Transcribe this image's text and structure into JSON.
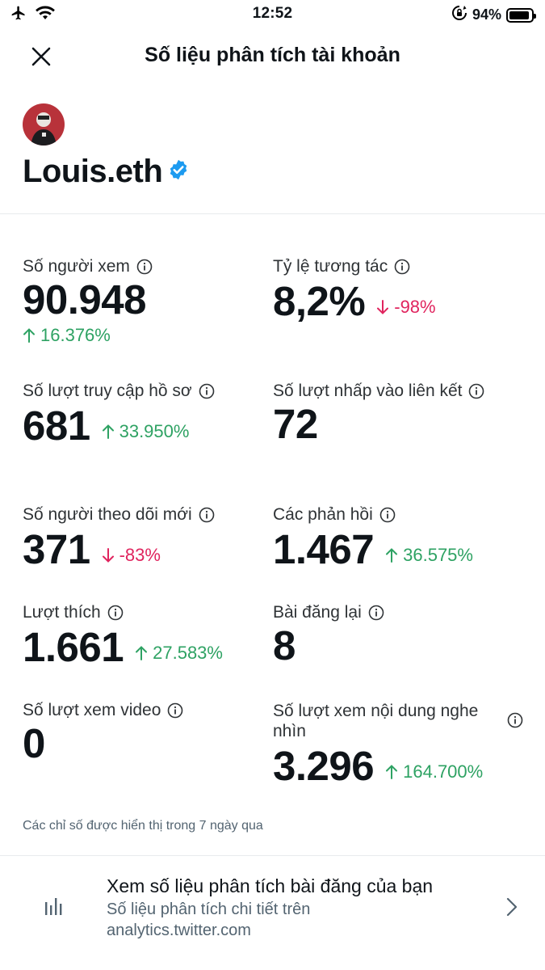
{
  "status_bar": {
    "time": "12:52",
    "battery": "94%",
    "battery_level": 0.94
  },
  "header": {
    "title": "Số liệu phân tích tài khoản",
    "close_icon": "close-icon"
  },
  "profile": {
    "name": "Louis.eth",
    "verified": true
  },
  "metrics": {
    "views": {
      "label": "Số người xem",
      "value": "90.948",
      "change": "16.376%",
      "direction": "up"
    },
    "engagement": {
      "label": "Tỷ lệ tương tác",
      "value": "8,2%",
      "change": "-98%",
      "direction": "down"
    },
    "profile_visits": {
      "label": "Số lượt truy cập hồ sơ",
      "value": "681",
      "change": "33.950%",
      "direction": "up"
    },
    "link_clicks": {
      "label": "Số lượt nhấp vào liên kết",
      "value": "72"
    },
    "new_followers": {
      "label": "Số người theo dõi mới",
      "value": "371",
      "change": "-83%",
      "direction": "down"
    },
    "replies": {
      "label": "Các phản hồi",
      "value": "1.467",
      "change": "36.575%",
      "direction": "up"
    },
    "likes": {
      "label": "Lượt thích",
      "value": "1.661",
      "change": "27.583%",
      "direction": "up"
    },
    "reposts": {
      "label": "Bài đăng lại",
      "value": "8"
    },
    "video_views": {
      "label": "Số lượt xem video",
      "value": "0"
    },
    "media_views": {
      "label": "Số lượt xem nội dung nghe nhìn",
      "value": "3.296",
      "change": "164.700%",
      "direction": "up"
    }
  },
  "footnote": "Các chỉ số được hiển thị trong 7 ngày qua",
  "analytics_link": {
    "title": "Xem số liệu phân tích bài đăng của bạn",
    "subtitle": "Số liệu phân tích chi tiết trên analytics.twitter.com"
  },
  "colors": {
    "positive": "#2ea263",
    "negative": "#e0245e",
    "verified": "#1d9bf0"
  }
}
